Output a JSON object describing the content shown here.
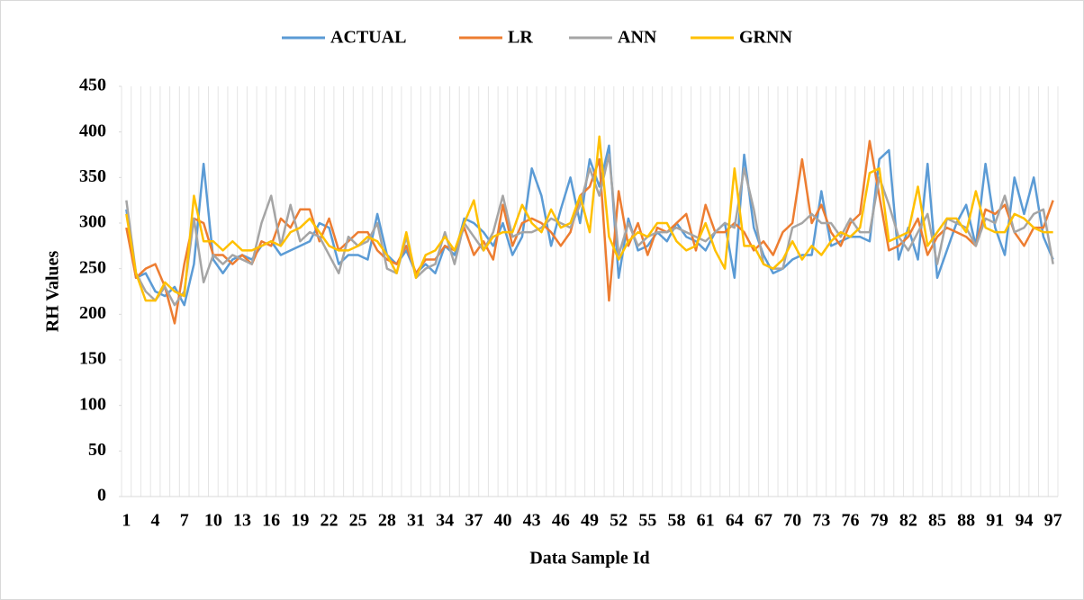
{
  "chart_data": {
    "type": "line",
    "x_label": "Data Sample Id",
    "y_label": "RH Values",
    "categories": [
      1,
      null,
      null,
      4,
      null,
      null,
      7,
      null,
      null,
      10,
      null,
      null,
      13,
      null,
      null,
      16,
      null,
      null,
      19,
      null,
      null,
      22,
      null,
      null,
      25,
      null,
      null,
      28,
      null,
      null,
      31,
      null,
      null,
      34,
      null,
      null,
      37,
      null,
      null,
      40,
      null,
      null,
      43,
      null,
      null,
      46,
      null,
      null,
      49,
      null,
      null,
      52,
      null,
      null,
      55,
      null,
      null,
      58,
      null,
      null,
      61,
      null,
      null,
      64,
      null,
      null,
      67,
      null,
      null,
      70,
      null,
      null,
      73,
      null,
      null,
      76,
      null,
      null,
      79,
      null,
      null,
      82,
      null,
      null,
      85,
      null,
      null,
      88,
      null,
      null,
      91,
      null,
      null,
      94,
      null,
      null,
      97
    ],
    "ylim": [
      0,
      450
    ],
    "yticks": [
      0,
      50,
      100,
      150,
      200,
      250,
      300,
      350,
      400,
      450
    ],
    "grid": true,
    "legend": "top",
    "series": [
      {
        "name": "ACTUAL",
        "color": "#5b9bd5",
        "values": [
          315,
          240,
          245,
          225,
          220,
          230,
          210,
          255,
          365,
          260,
          245,
          260,
          265,
          260,
          275,
          280,
          265,
          270,
          275,
          280,
          300,
          295,
          255,
          265,
          265,
          260,
          310,
          265,
          255,
          270,
          245,
          255,
          245,
          275,
          265,
          305,
          300,
          290,
          275,
          300,
          265,
          285,
          360,
          330,
          275,
          315,
          350,
          300,
          370,
          340,
          385,
          240,
          305,
          270,
          275,
          290,
          280,
          300,
          285,
          280,
          270,
          290,
          300,
          240,
          375,
          295,
          265,
          245,
          250,
          260,
          265,
          265,
          335,
          275,
          280,
          285,
          285,
          280,
          370,
          380,
          260,
          295,
          260,
          365,
          240,
          270,
          300,
          320,
          275,
          365,
          295,
          265,
          350,
          310,
          350,
          285,
          260
        ]
      },
      {
        "name": "LR",
        "color": "#ed7d31",
        "values": [
          295,
          240,
          250,
          255,
          230,
          190,
          255,
          305,
          300,
          265,
          265,
          255,
          265,
          255,
          280,
          275,
          305,
          295,
          315,
          315,
          280,
          305,
          270,
          280,
          290,
          290,
          270,
          260,
          255,
          275,
          245,
          260,
          260,
          275,
          270,
          295,
          265,
          280,
          260,
          320,
          275,
          300,
          305,
          300,
          290,
          275,
          290,
          330,
          340,
          370,
          215,
          335,
          275,
          300,
          265,
          295,
          290,
          300,
          310,
          270,
          320,
          290,
          290,
          300,
          290,
          270,
          280,
          265,
          290,
          300,
          370,
          300,
          320,
          290,
          275,
          300,
          310,
          390,
          330,
          270,
          275,
          285,
          305,
          265,
          285,
          295,
          290,
          285,
          275,
          315,
          310,
          320,
          290,
          275,
          295,
          295,
          325
        ]
      },
      {
        "name": "ANN",
        "color": "#a5a5a5",
        "values": [
          325,
          245,
          225,
          215,
          230,
          210,
          225,
          305,
          235,
          265,
          255,
          265,
          260,
          255,
          300,
          330,
          275,
          320,
          280,
          290,
          285,
          265,
          245,
          285,
          275,
          280,
          300,
          250,
          245,
          285,
          240,
          250,
          255,
          290,
          255,
          300,
          285,
          270,
          290,
          330,
          285,
          290,
          290,
          295,
          305,
          300,
          295,
          320,
          360,
          330,
          375,
          265,
          300,
          275,
          285,
          290,
          290,
          295,
          290,
          285,
          280,
          290,
          300,
          295,
          360,
          315,
          255,
          250,
          250,
          295,
          300,
          310,
          300,
          300,
          285,
          305,
          290,
          290,
          350,
          320,
          285,
          270,
          290,
          310,
          255,
          305,
          300,
          295,
          275,
          305,
          300,
          330,
          290,
          295,
          310,
          315,
          255
        ]
      },
      {
        "name": "GRNN",
        "color": "#ffc000",
        "values": [
          310,
          245,
          215,
          215,
          235,
          225,
          220,
          330,
          280,
          280,
          270,
          280,
          270,
          270,
          275,
          280,
          275,
          290,
          295,
          305,
          290,
          275,
          270,
          270,
          275,
          285,
          280,
          265,
          245,
          290,
          240,
          265,
          270,
          285,
          270,
          300,
          325,
          270,
          285,
          290,
          290,
          320,
          300,
          290,
          315,
          295,
          300,
          330,
          290,
          395,
          285,
          260,
          280,
          290,
          285,
          300,
          300,
          280,
          270,
          275,
          300,
          270,
          250,
          360,
          275,
          275,
          255,
          250,
          260,
          280,
          260,
          275,
          265,
          280,
          290,
          285,
          295,
          355,
          360,
          280,
          285,
          290,
          340,
          275,
          290,
          305,
          305,
          290,
          335,
          295,
          290,
          290,
          310,
          305,
          295,
          290,
          290
        ]
      }
    ]
  }
}
